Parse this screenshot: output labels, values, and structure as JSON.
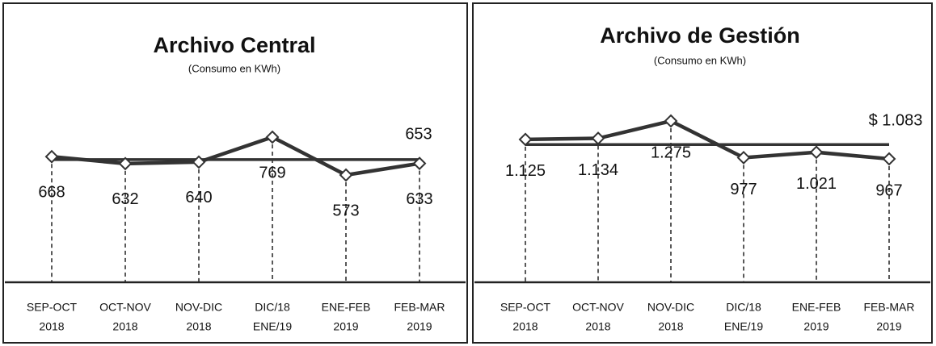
{
  "chart_data": [
    {
      "type": "line",
      "title": "Archivo Central",
      "subtitle": "(Consumo en KWh)",
      "categories": [
        [
          "SEP-OCT",
          "2018"
        ],
        [
          "OCT-NOV",
          "2018"
        ],
        [
          "NOV-DIC",
          "2018"
        ],
        [
          "DIC/18",
          "ENE/19"
        ],
        [
          "ENE-FEB",
          "2019"
        ],
        [
          "FEB-MAR",
          "2019"
        ]
      ],
      "values": [
        668,
        632,
        640,
        769,
        573,
        633
      ],
      "color": "#333333",
      "average": {
        "value": 653
      }
    },
    {
      "type": "line",
      "title": "Archivo de Gestión",
      "subtitle": "(Consumo en KWh)",
      "categories": [
        [
          "SEP-OCT",
          "2018"
        ],
        [
          "OCT-NOV",
          "2018"
        ],
        [
          "NOV-DIC",
          "2018"
        ],
        [
          "DIC/18",
          "ENE/19"
        ],
        [
          "ENE-FEB",
          "2019"
        ],
        [
          "FEB-MAR",
          "2019"
        ]
      ],
      "values": [
        1125,
        1134,
        1275,
        977,
        1021,
        967
      ],
      "value_labels": [
        "1.125",
        "1.134",
        "1.275",
        "977",
        "1.021",
        "967"
      ],
      "color": "#333333",
      "average": {
        "value": 1083,
        "label": "$ 1.083"
      }
    }
  ]
}
